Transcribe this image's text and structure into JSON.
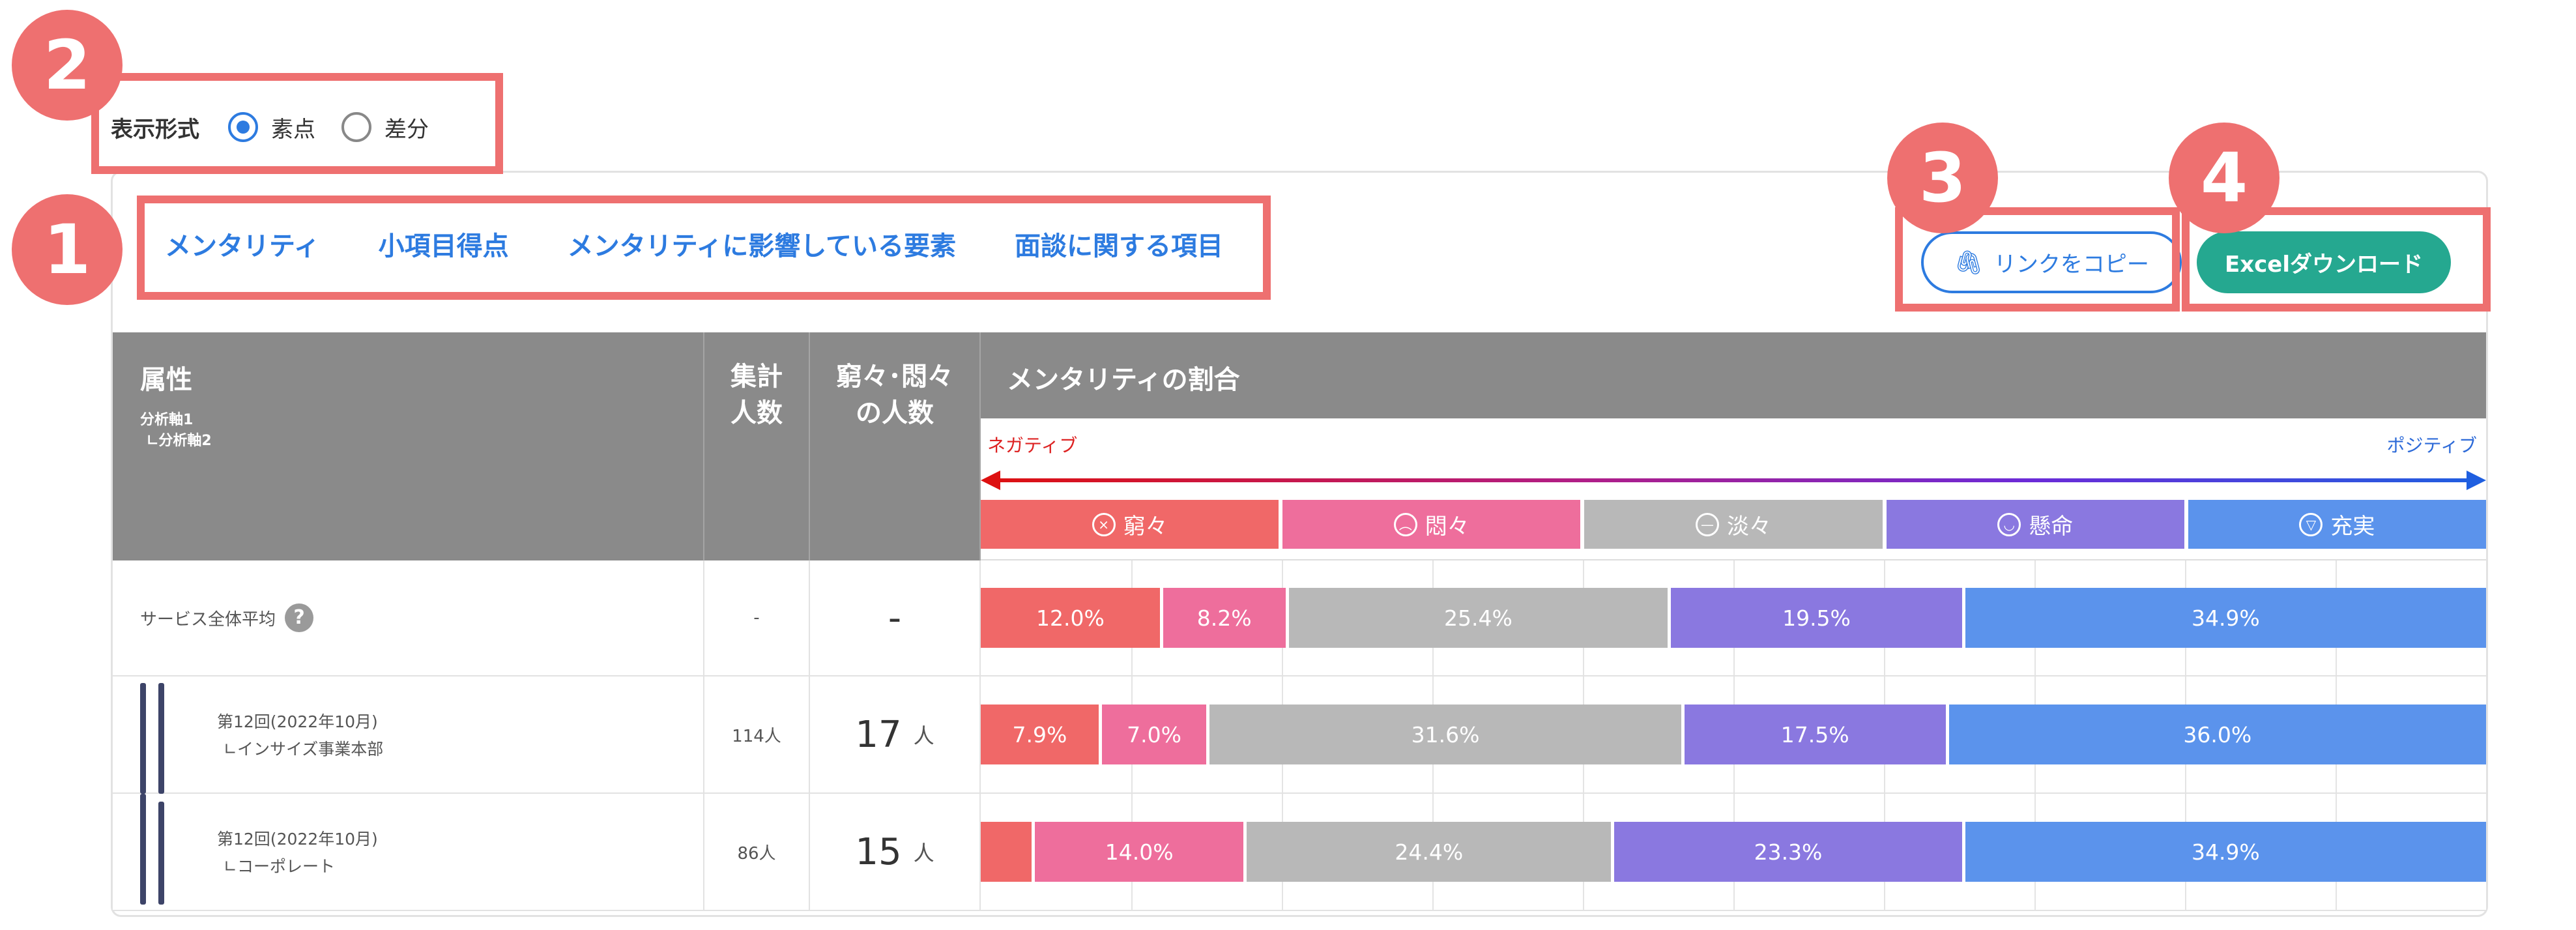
{
  "annotations": [
    "1",
    "2",
    "3",
    "4"
  ],
  "display_format": {
    "label": "表示形式",
    "options": [
      {
        "label": "素点",
        "selected": true
      },
      {
        "label": "差分",
        "selected": false
      }
    ]
  },
  "tabs": [
    "メンタリティ",
    "小項目得点",
    "メンタリティに影響している要素",
    "面談に関する項目"
  ],
  "buttons": {
    "copy_link": "リンクをコピー",
    "excel": "Excelダウンロード"
  },
  "table": {
    "headers": {
      "attribute": "属性",
      "axis1": "分析軸1",
      "axis2": "∟分析軸2",
      "total": "集計人数",
      "count": "窮々･悶々の人数",
      "ratio": "メンタリティの割合"
    },
    "scale": {
      "negative": "ネガティブ",
      "positive": "ポジティブ"
    },
    "categories": [
      {
        "name": "窮々",
        "color": "#f06868",
        "icon": "dizzy-face-icon"
      },
      {
        "name": "悶々",
        "color": "#ee6e9c",
        "icon": "frown-face-icon"
      },
      {
        "name": "淡々",
        "color": "#b8b8b8",
        "icon": "neutral-face-icon"
      },
      {
        "name": "懸命",
        "color": "#8a78e0",
        "icon": "smile-face-icon"
      },
      {
        "name": "充実",
        "color": "#5b93ec",
        "icon": "grin-face-icon"
      }
    ],
    "rows": [
      {
        "label": "サービス全体平均",
        "total": "-",
        "count": "-",
        "count_unit": "",
        "segments": [
          {
            "value": 12.0,
            "label": "12.0%"
          },
          {
            "value": 8.2,
            "label": "8.2%"
          },
          {
            "value": 25.4,
            "label": "25.4%"
          },
          {
            "value": 19.5,
            "label": "19.5%"
          },
          {
            "value": 34.9,
            "label": "34.9%"
          }
        ]
      },
      {
        "label": "第12回(2022年10月)",
        "sub": "∟インサイズ事業本部",
        "total": "114人",
        "count": "17",
        "count_unit": "人",
        "segments": [
          {
            "value": 7.9,
            "label": "7.9%"
          },
          {
            "value": 7.0,
            "label": "7.0%"
          },
          {
            "value": 31.6,
            "label": "31.6%"
          },
          {
            "value": 17.5,
            "label": "17.5%"
          },
          {
            "value": 36.0,
            "label": "36.0%"
          }
        ]
      },
      {
        "label": "第12回(2022年10月)",
        "sub": "∟コーポレート",
        "total": "86人",
        "count": "15",
        "count_unit": "人",
        "segments": [
          {
            "value": 3.4,
            "label": ""
          },
          {
            "value": 14.0,
            "label": "14.0%"
          },
          {
            "value": 24.4,
            "label": "24.4%"
          },
          {
            "value": 23.3,
            "label": "23.3%"
          },
          {
            "value": 34.9,
            "label": "34.9%"
          }
        ]
      }
    ]
  }
}
